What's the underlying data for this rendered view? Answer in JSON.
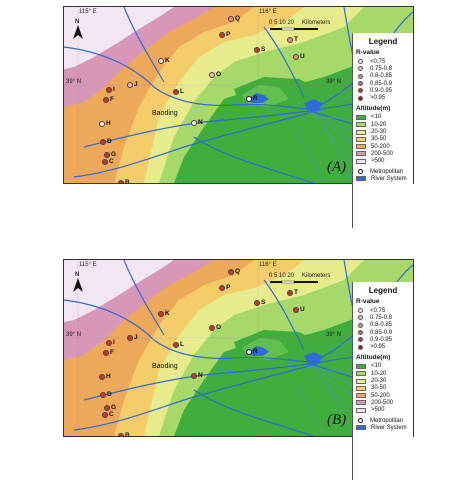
{
  "panels": [
    {
      "label": "(A)",
      "ticks": {
        "lon_115": "115° E",
        "lon_116": "116° E",
        "lat_39_left": "39° N",
        "lat_39_right": "39° N"
      },
      "scale": {
        "numbers": "0  5  10     20",
        "unit": "Kilometers"
      },
      "north": "N",
      "city": "Baoding",
      "sites": [
        {
          "id": "A",
          "class": "0.9-0.95"
        },
        {
          "id": "B",
          "class": "0.9-0.95"
        },
        {
          "id": "C",
          "class": "0.9-0.95"
        },
        {
          "id": "D",
          "class": "0.9-0.95"
        },
        {
          "id": "E",
          "class": "0.9-0.95"
        },
        {
          "id": "F",
          "class": "0.9-0.95"
        },
        {
          "id": "G",
          "class": "0.9-0.95"
        },
        {
          "id": "H",
          "class": "<0.75"
        },
        {
          "id": "I",
          "class": "0.9-0.95"
        },
        {
          "id": "J",
          "class": "0.75-0.8"
        },
        {
          "id": "K",
          "class": "<0.75"
        },
        {
          "id": "L",
          "class": "0.9-0.95"
        },
        {
          "id": "N",
          "class": "<0.75"
        },
        {
          "id": "O",
          "class": "0.75-0.8"
        },
        {
          "id": "P",
          "class": "0.9-0.95"
        },
        {
          "id": "Q",
          "class": "0.8-0.85"
        },
        {
          "id": "R",
          "class": "metropolitan"
        },
        {
          "id": "S",
          "class": "0.9-0.95"
        },
        {
          "id": "T",
          "class": "0.8-0.85"
        },
        {
          "id": "U",
          "class": "0.8-0.85"
        }
      ]
    },
    {
      "label": "(B)",
      "ticks": {
        "lon_115": "115° E",
        "lon_116": "116° E",
        "lat_39_left": "39° N",
        "lat_39_right": "39° N"
      },
      "scale": {
        "numbers": "0  5  10     20",
        "unit": "Kilometers"
      },
      "north": "N",
      "city": "Baoding",
      "sites": [
        {
          "id": "A",
          "class": "0.9-0.95"
        },
        {
          "id": "B",
          "class": "0.9-0.95"
        },
        {
          "id": "C",
          "class": "0.9-0.95"
        },
        {
          "id": "D",
          "class": "0.9-0.95"
        },
        {
          "id": "E",
          "class": "0.9-0.95"
        },
        {
          "id": "F",
          "class": "0.9-0.95"
        },
        {
          "id": "G",
          "class": "0.9-0.95"
        },
        {
          "id": "H",
          "class": "0.9-0.95"
        },
        {
          "id": "I",
          "class": "0.9-0.95"
        },
        {
          "id": "J",
          "class": "0.9-0.95"
        },
        {
          "id": "K",
          "class": "0.9-0.95"
        },
        {
          "id": "L",
          "class": "0.9-0.95"
        },
        {
          "id": "N",
          "class": "0.9-0.95"
        },
        {
          "id": "O",
          "class": "0.9-0.95"
        },
        {
          "id": "P",
          "class": "0.9-0.95"
        },
        {
          "id": "Q",
          "class": "0.9-0.95"
        },
        {
          "id": "R",
          "class": "metropolitan"
        },
        {
          "id": "S",
          "class": "0.9-0.95"
        },
        {
          "id": "T",
          "class": "0.9-0.95"
        },
        {
          "id": "U",
          "class": "0.9-0.95"
        }
      ]
    }
  ],
  "legend": {
    "title": "Legend",
    "rvalue_title": "R-value",
    "rvalue": [
      {
        "label": "<0.75",
        "color": "#fbe6e0"
      },
      {
        "label": "0.75-0.8",
        "color": "#f4b9ab"
      },
      {
        "label": "0.8-0.85",
        "color": "#ec8a79"
      },
      {
        "label": "0.85-0.9",
        "color": "#e05a4a"
      },
      {
        "label": "0.9-0.95",
        "color": "#d3302a"
      },
      {
        "label": ">0.95",
        "color": "#b3121a"
      }
    ],
    "altitude_title": "Altitude(m)",
    "altitude": [
      {
        "label": "<10",
        "color": "#3fae3c"
      },
      {
        "label": "10-20",
        "color": "#a6d96a"
      },
      {
        "label": "20-30",
        "color": "#e6ec8c"
      },
      {
        "label": "30-50",
        "color": "#f4cc6a"
      },
      {
        "label": "50-200",
        "color": "#eea85a"
      },
      {
        "label": "200-500",
        "color": "#d896b8"
      },
      {
        "label": ">500",
        "color": "#f3e6f3"
      }
    ],
    "metropolitan": "Metropolitan",
    "river": "River System",
    "river_color": "#2e6bd6"
  },
  "legend_b_rvalue_labels": [
    "<0.75",
    "0.75-0.8",
    "0.8-0.85",
    "0.85-0.9",
    "0.9-0.95",
    ">0.95"
  ]
}
